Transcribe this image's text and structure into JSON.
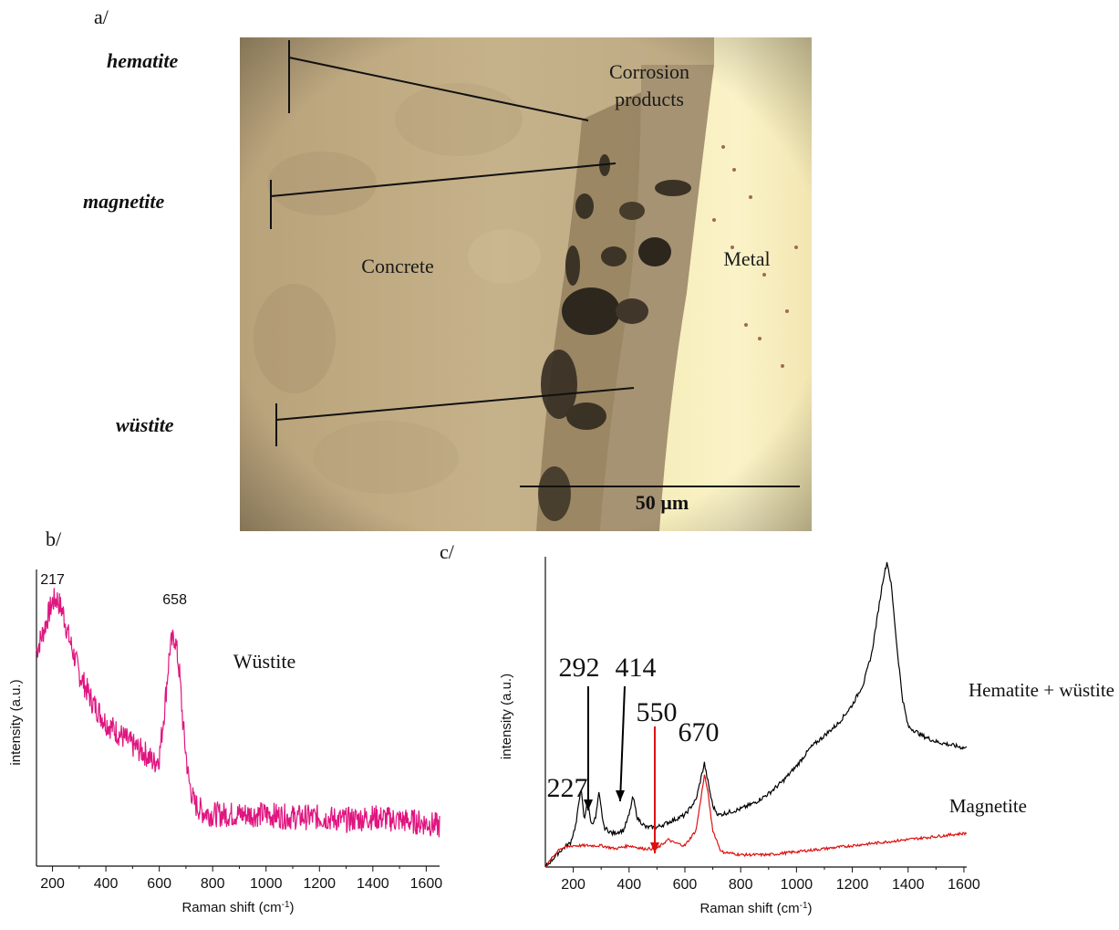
{
  "panel_a": {
    "label": "a/",
    "minerals": [
      "hematite",
      "magnetite",
      "wüstite"
    ],
    "regions": {
      "corrosion_line1": "Corrosion",
      "corrosion_line2": "products",
      "concrete": "Concrete",
      "metal": "Metal"
    },
    "scale_bar": "50 µm"
  },
  "panel_b": {
    "label": "b/"
  },
  "panel_c": {
    "label": "c/"
  },
  "chart_data": [
    {
      "type": "line",
      "panel": "b/",
      "xlabel": "Raman shift (cm-1)",
      "ylabel": "intensity (a.u.)",
      "xlim": [
        140,
        1650
      ],
      "ylim": [
        0,
        100
      ],
      "x_ticks": [
        200,
        400,
        600,
        800,
        1000,
        1200,
        1400,
        1600
      ],
      "color": "#e0157f",
      "series": [
        {
          "name": "Wüstite",
          "x": [
            140,
            160,
            180,
            200,
            217,
            240,
            260,
            300,
            350,
            400,
            450,
            500,
            550,
            580,
            600,
            620,
            640,
            658,
            675,
            690,
            710,
            730,
            760,
            800,
            900,
            1000,
            1100,
            1200,
            1300,
            1400,
            1500,
            1600,
            1650
          ],
          "y": [
            75,
            80,
            86,
            92,
            93,
            88,
            80,
            67,
            57,
            50,
            46,
            42,
            39,
            36,
            38,
            55,
            76,
            80,
            68,
            48,
            30,
            22,
            19,
            18,
            18,
            18,
            17,
            17,
            16,
            17,
            16,
            15,
            14
          ]
        }
      ],
      "annotations": [
        {
          "x": 217,
          "text": "217"
        },
        {
          "x": 658,
          "text": "658"
        }
      ]
    },
    {
      "type": "line",
      "panel": "c/",
      "xlabel": "Raman shift (cm-1)",
      "ylabel": "intensity (a.u.)",
      "xlim": [
        100,
        1610
      ],
      "ylim": [
        0,
        100
      ],
      "x_ticks": [
        200,
        400,
        600,
        800,
        1000,
        1200,
        1400,
        1600
      ],
      "series": [
        {
          "name": "Hematite + wüstite",
          "color": "#000000",
          "x": [
            100,
            150,
            190,
            210,
            227,
            240,
            250,
            265,
            280,
            292,
            310,
            340,
            380,
            400,
            414,
            430,
            460,
            500,
            550,
            600,
            640,
            660,
            670,
            680,
            700,
            720,
            760,
            800,
            850,
            900,
            950,
            1000,
            1050,
            1100,
            1150,
            1200,
            1240,
            1270,
            1290,
            1310,
            1325,
            1340,
            1360,
            1380,
            1400,
            1450,
            1500,
            1550,
            1600
          ],
          "y": [
            0,
            5,
            8,
            14,
            26,
            15,
            22,
            14,
            16,
            24,
            13,
            11,
            12,
            17,
            23,
            16,
            13,
            13,
            15,
            17,
            22,
            30,
            34,
            29,
            20,
            17,
            18,
            19,
            21,
            24,
            28,
            33,
            39,
            43,
            47,
            53,
            60,
            70,
            82,
            94,
            100,
            92,
            72,
            55,
            46,
            43,
            41,
            40,
            39
          ]
        },
        {
          "name": "Magnetite",
          "color": "#dd1111",
          "x": [
            100,
            150,
            200,
            250,
            300,
            350,
            400,
            450,
            500,
            540,
            560,
            600,
            640,
            660,
            670,
            680,
            700,
            730,
            800,
            900,
            1000,
            1100,
            1200,
            1300,
            1400,
            1500,
            1600
          ],
          "y": [
            0,
            6,
            7,
            7,
            7,
            6,
            7,
            6,
            6,
            9,
            8,
            7,
            12,
            24,
            30,
            26,
            12,
            5,
            4,
            4,
            5,
            6,
            7,
            8,
            9,
            10,
            11
          ]
        }
      ],
      "annotations": [
        {
          "x": 227,
          "text": "227",
          "color": "#000000"
        },
        {
          "x": 292,
          "text": "292",
          "color": "#000000"
        },
        {
          "x": 414,
          "text": "414",
          "color": "#000000"
        },
        {
          "x": 550,
          "text": "550",
          "color": "#dd1111"
        },
        {
          "x": 670,
          "text": "670",
          "color": "#000000"
        }
      ]
    }
  ]
}
